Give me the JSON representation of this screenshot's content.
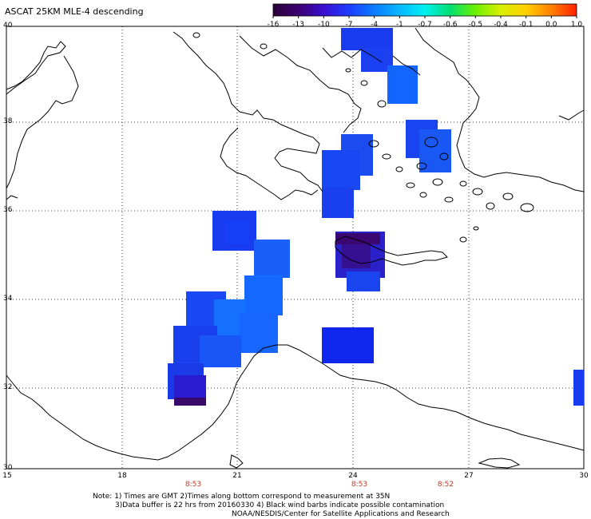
{
  "header": {
    "title": "ASCAT 25KM MLE-4 descending"
  },
  "colorbar": {
    "ticks": [
      "-16",
      "-13",
      "-10",
      "-7",
      "-4",
      "-1",
      "-0.7",
      "-0.6",
      "-0.5",
      "-0.4",
      "-0.1",
      "0.0",
      "1.0"
    ],
    "colors": [
      "#2b003a",
      "#3c0070",
      "#3a0fd0",
      "#1d3cff",
      "#0a7cff",
      "#08b7ff",
      "#00f0f0",
      "#00e070",
      "#6cf000",
      "#d8f000",
      "#ffd000",
      "#ff8000",
      "#ff2000"
    ]
  },
  "axes": {
    "lat_labels": [
      "40",
      "38",
      "36",
      "34",
      "32",
      "30"
    ],
    "lon_labels": [
      "15",
      "18",
      "21",
      "24",
      "27",
      "30"
    ]
  },
  "times": [
    "8:53",
    "8:53",
    "8:52"
  ],
  "notes": [
    "Note: 1) Times are GMT 2)Times along bottom correspond to measurement at 35N",
    "3)Data buffer is 22 hrs from 20160330 4) Black wind barbs indicate possible contamination",
    "NOAA/NESDIS/Center for Satellite Applications and Research"
  ]
}
